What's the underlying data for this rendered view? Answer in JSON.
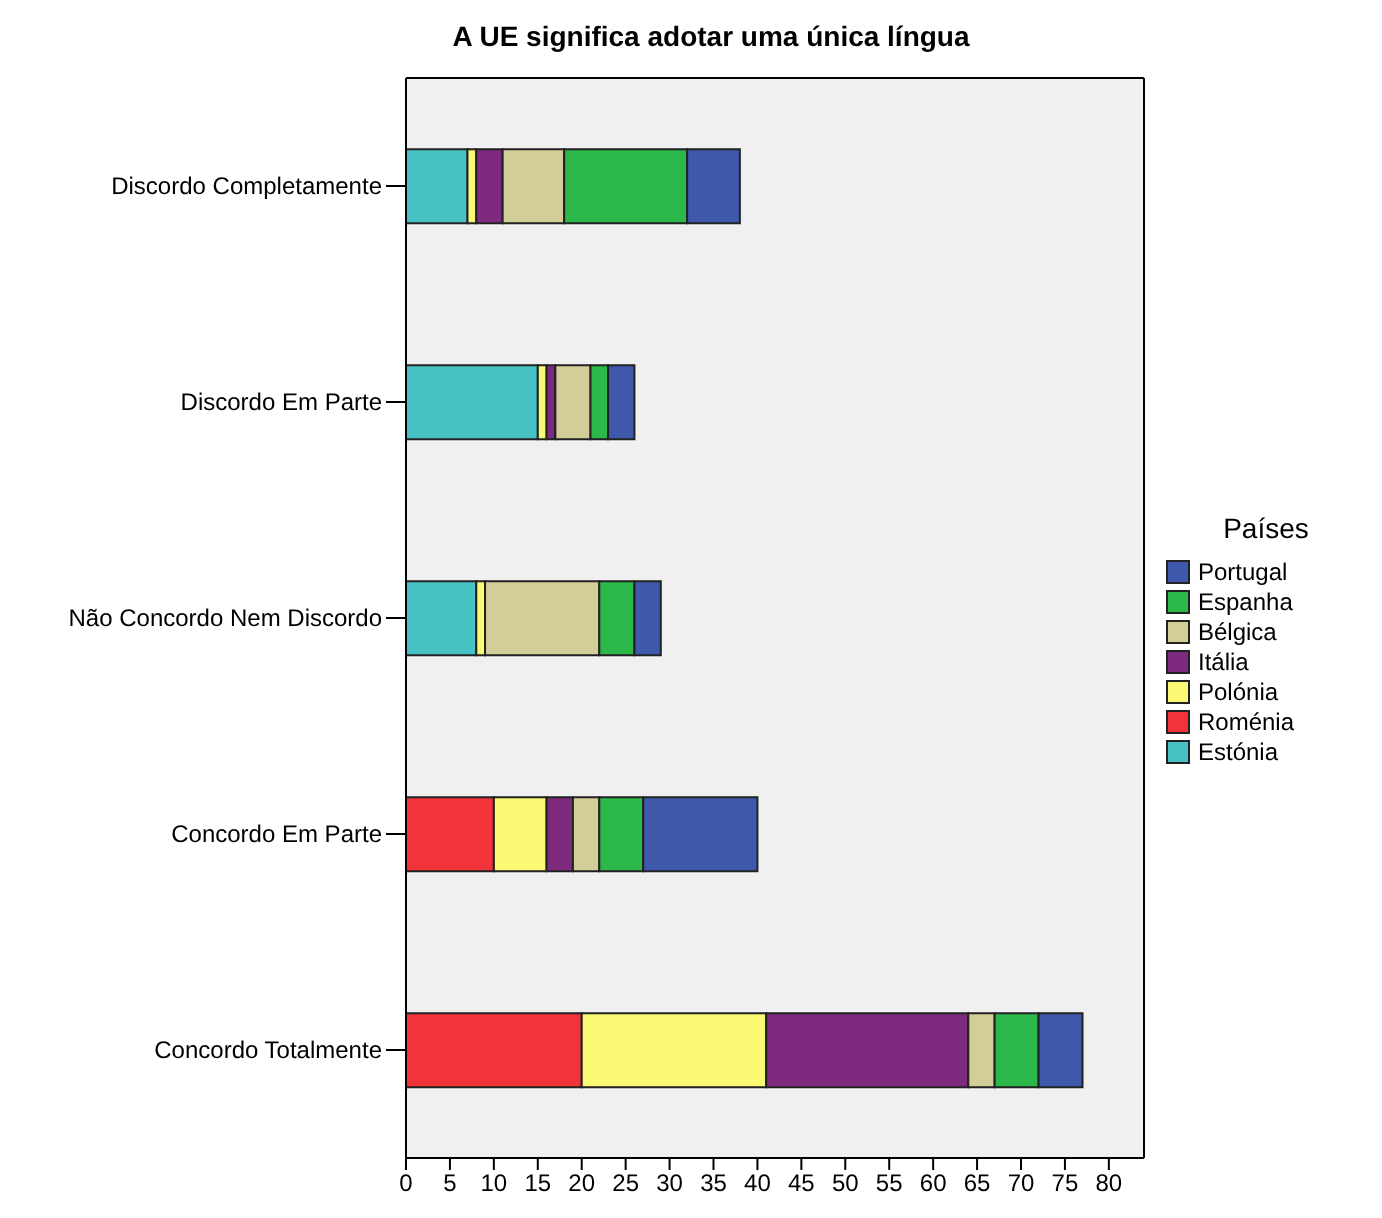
{
  "chart_data": {
    "type": "bar",
    "orientation": "horizontal",
    "stacked": true,
    "title": "A UE significa adotar uma única língua",
    "legend_title": "Países",
    "legend": "right",
    "grid": false,
    "categories": [
      "Discordo Completamente",
      "Discordo Em Parte",
      "Não Concordo Nem Discordo",
      "Concordo Em Parte",
      "Concordo Totalmente"
    ],
    "xlim": [
      0,
      84
    ],
    "xticks": [
      0,
      5,
      10,
      15,
      20,
      25,
      30,
      35,
      40,
      45,
      50,
      55,
      60,
      65,
      70,
      75,
      80
    ],
    "series": [
      {
        "name": "Estónia",
        "color": "#48c2c5",
        "values": [
          7,
          15,
          8,
          0,
          0
        ]
      },
      {
        "name": "Roménia",
        "color": "#f2333a",
        "values": [
          0,
          0,
          0,
          10,
          20
        ]
      },
      {
        "name": "Polónia",
        "color": "#fbf873",
        "values": [
          1,
          1,
          1,
          6,
          21
        ]
      },
      {
        "name": "Itália",
        "color": "#7e2a7e",
        "values": [
          3,
          1,
          0,
          3,
          23
        ]
      },
      {
        "name": "Bélgica",
        "color": "#d3ce97",
        "values": [
          7,
          4,
          13,
          3,
          3
        ]
      },
      {
        "name": "Espanha",
        "color": "#2db84b",
        "values": [
          14,
          2,
          4,
          5,
          5
        ]
      },
      {
        "name": "Portugal",
        "color": "#3e58ac",
        "values": [
          6,
          3,
          3,
          13,
          5
        ]
      }
    ]
  }
}
